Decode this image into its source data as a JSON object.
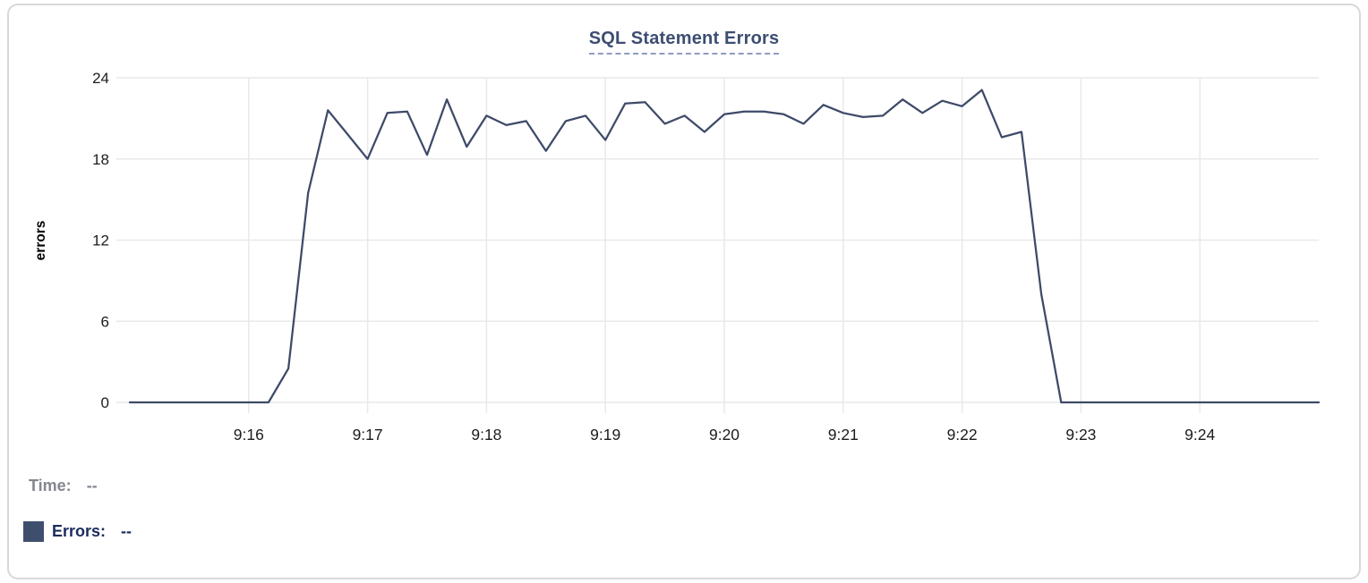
{
  "chart_data": {
    "type": "line",
    "title": "SQL Statement Errors",
    "xlabel": "",
    "ylabel": "errors",
    "ylim": [
      0,
      24
    ],
    "yticks": [
      0,
      6,
      12,
      18,
      24
    ],
    "xtick_labels": [
      "9:16",
      "9:17",
      "9:18",
      "9:19",
      "9:20",
      "9:21",
      "9:22",
      "9:23",
      "9:24"
    ],
    "grid": true,
    "legend_position": "bottom-left",
    "x": [
      "9:15:00",
      "9:15:10",
      "9:15:20",
      "9:15:30",
      "9:15:40",
      "9:15:50",
      "9:16:00",
      "9:16:10",
      "9:16:20",
      "9:16:30",
      "9:16:40",
      "9:16:50",
      "9:17:00",
      "9:17:10",
      "9:17:20",
      "9:17:30",
      "9:17:40",
      "9:17:50",
      "9:18:00",
      "9:18:10",
      "9:18:20",
      "9:18:30",
      "9:18:40",
      "9:18:50",
      "9:19:00",
      "9:19:10",
      "9:19:20",
      "9:19:30",
      "9:19:40",
      "9:19:50",
      "9:20:00",
      "9:20:10",
      "9:20:20",
      "9:20:30",
      "9:20:40",
      "9:20:50",
      "9:21:00",
      "9:21:10",
      "9:21:20",
      "9:21:30",
      "9:21:40",
      "9:21:50",
      "9:22:00",
      "9:22:10",
      "9:22:20",
      "9:22:30",
      "9:22:40",
      "9:22:50",
      "9:23:00",
      "9:23:10",
      "9:23:20",
      "9:23:30",
      "9:23:40",
      "9:23:50",
      "9:24:00",
      "9:24:10",
      "9:24:20",
      "9:24:30",
      "9:24:40",
      "9:24:50",
      "9:25:00"
    ],
    "series": [
      {
        "name": "Errors",
        "values": [
          0,
          0,
          0,
          0,
          0,
          0,
          0,
          0,
          2.5,
          15.5,
          21.6,
          19.8,
          18,
          21.4,
          21.5,
          18.3,
          22.4,
          18.9,
          21.2,
          20.5,
          20.8,
          18.6,
          20.8,
          21.2,
          19.4,
          22.1,
          22.2,
          20.6,
          21.2,
          20,
          21.3,
          21.5,
          21.5,
          21.3,
          20.6,
          22,
          21.4,
          21.1,
          21.2,
          22.4,
          21.4,
          22.3,
          21.9,
          23.1,
          19.6,
          20,
          8,
          0,
          0,
          0,
          0,
          0,
          0,
          0,
          0,
          0,
          0,
          0,
          0,
          0,
          0
        ]
      }
    ]
  },
  "colors": {
    "line": "#3e4a68",
    "grid": "#e9e9e9",
    "axis_text": "#1c1c1e",
    "axis_title_text": "#000000",
    "title_text": "#3d4e72",
    "title_underline": "#8f9cbd",
    "time_text": "#84878e",
    "errors_text": "#1c2b5e",
    "swatch": "#3e4f6e",
    "card_border": "#d8d8d8"
  },
  "hover": {
    "time_label": "Time:",
    "time_value": "--",
    "errors_label": "Errors:",
    "errors_value": "--"
  }
}
